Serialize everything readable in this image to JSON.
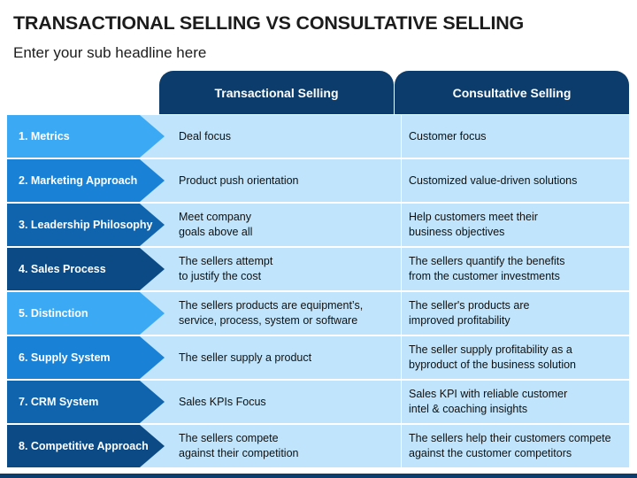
{
  "title": "TRANSACTIONAL SELLING VS CONSULTATIVE SELLING",
  "subtitle": "Enter your sub headline here",
  "columns": {
    "transactional": "Transactional Selling",
    "consultative": "Consultative Selling"
  },
  "rows": [
    {
      "label": "1. Metrics",
      "transactional": "Deal focus",
      "consultative": "Customer focus"
    },
    {
      "label": "2. Marketing Approach",
      "transactional": "Product push orientation",
      "consultative": "Customized value-driven solutions"
    },
    {
      "label": "3. Leadership Philosophy",
      "transactional": "Meet company\ngoals above all",
      "consultative": "Help customers meet their\nbusiness objectives"
    },
    {
      "label": "4. Sales Process",
      "transactional": "The sellers attempt\nto justify the cost",
      "consultative": "The sellers quantify the benefits\nfrom the customer investments"
    },
    {
      "label": "5. Distinction",
      "transactional": "The sellers products are equipment’s,\nservice, process, system or software",
      "consultative": "The seller's products are\nimproved profitability"
    },
    {
      "label": "6. Supply System",
      "transactional": "The seller supply a product",
      "consultative": "The seller supply profitability as a\nbyproduct of the business solution"
    },
    {
      "label": "7. CRM System",
      "transactional": "Sales KPIs Focus",
      "consultative": "Sales KPI with reliable customer\nintel & coaching insights"
    },
    {
      "label": "8. Competitive Approach",
      "transactional": "The sellers compete\nagainst their competition",
      "consultative": "The sellers help their customers compete\nagainst the customer competitors"
    }
  ],
  "colors": {
    "header": "#0b3c6b",
    "band": "#bfe4fb",
    "chevrons": [
      "#3ca9f4",
      "#1a82d6",
      "#0f64ad",
      "#0b4a85"
    ]
  }
}
